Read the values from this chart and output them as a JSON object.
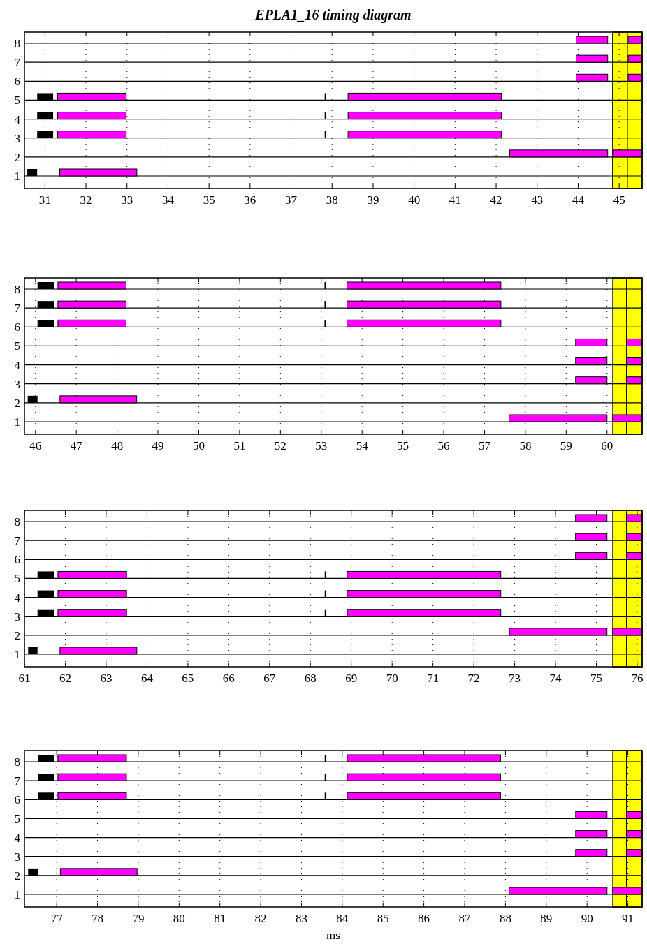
{
  "chart_data": [
    {
      "type": "bar",
      "orientation": "horizontal",
      "title": "EPLA1_16 timing diagram",
      "categories": [
        "8",
        "7",
        "6",
        "5",
        "4",
        "3",
        "2",
        "1"
      ],
      "xlim": [
        30.5,
        45.56
      ],
      "xticks": [
        31,
        32,
        33,
        34,
        35,
        36,
        37,
        38,
        39,
        40,
        41,
        42,
        43,
        44,
        45
      ],
      "grid": true,
      "bands": [
        {
          "axis": "x",
          "from": 44.84,
          "to": 45.2,
          "color": "#ffff00"
        },
        {
          "axis": "x",
          "from": 45.2,
          "to": 45.56,
          "color": "#ffff00"
        }
      ],
      "series": [
        {
          "color": "#000000",
          "base": [
            null,
            null,
            null,
            30.81,
            30.81,
            30.81,
            null,
            30.57
          ],
          "values": [
            null,
            null,
            null,
            0.39,
            0.39,
            0.39,
            null,
            0.24
          ]
        },
        {
          "color": "#ff00ff",
          "base": [
            null,
            null,
            null,
            31.31,
            31.31,
            31.31,
            null,
            31.36
          ],
          "values": [
            null,
            null,
            null,
            1.67,
            1.67,
            1.67,
            null,
            1.88
          ]
        },
        {
          "color": "#000000",
          "base": [
            null,
            null,
            null,
            37.82,
            37.82,
            37.82,
            null,
            null
          ],
          "values": [
            null,
            null,
            null,
            0.04,
            0.04,
            0.04,
            null,
            null
          ]
        },
        {
          "color": "#ff00ff",
          "base": [
            43.95,
            43.95,
            43.95,
            38.39,
            38.39,
            38.39,
            42.33,
            null
          ],
          "values": [
            0.77,
            0.77,
            0.77,
            3.74,
            3.74,
            3.74,
            2.39,
            null
          ]
        },
        {
          "color": "#ff00ff",
          "base": [
            45.22,
            45.22,
            45.22,
            null,
            null,
            null,
            44.86,
            null
          ],
          "values": [
            0.34,
            0.34,
            0.34,
            null,
            null,
            null,
            0.7,
            null
          ]
        }
      ]
    },
    {
      "type": "bar",
      "orientation": "horizontal",
      "categories": [
        "8",
        "7",
        "6",
        "5",
        "4",
        "3",
        "2",
        "1"
      ],
      "xlim": [
        45.73,
        60.86
      ],
      "xticks": [
        46,
        47,
        48,
        49,
        50,
        51,
        52,
        53,
        54,
        55,
        56,
        57,
        58,
        59,
        60
      ],
      "grid": true,
      "bands": [
        {
          "axis": "x",
          "from": 60.14,
          "to": 60.48,
          "color": "#ffff00"
        },
        {
          "axis": "x",
          "from": 60.48,
          "to": 60.86,
          "color": "#ffff00"
        }
      ],
      "series": [
        {
          "color": "#000000",
          "base": [
            46.05,
            46.05,
            46.05,
            null,
            null,
            null,
            45.81,
            null
          ],
          "values": [
            0.4,
            0.4,
            0.4,
            null,
            null,
            null,
            0.24,
            null
          ]
        },
        {
          "color": "#ff00ff",
          "base": [
            46.55,
            46.55,
            46.55,
            null,
            null,
            null,
            46.6,
            null
          ],
          "values": [
            1.67,
            1.67,
            1.67,
            null,
            null,
            null,
            1.88,
            null
          ]
        },
        {
          "color": "#000000",
          "base": [
            53.08,
            53.08,
            53.08,
            null,
            null,
            null,
            null,
            null
          ],
          "values": [
            0.04,
            0.04,
            0.04,
            null,
            null,
            null,
            null,
            null
          ]
        },
        {
          "color": "#ff00ff",
          "base": [
            53.63,
            53.63,
            53.63,
            59.23,
            59.23,
            59.23,
            null,
            57.6
          ],
          "values": [
            3.77,
            3.77,
            3.77,
            0.77,
            0.77,
            0.77,
            null,
            2.4
          ]
        },
        {
          "color": "#ff00ff",
          "base": [
            null,
            null,
            null,
            60.48,
            60.48,
            60.48,
            null,
            60.14
          ],
          "values": [
            null,
            null,
            null,
            0.38,
            0.38,
            0.38,
            null,
            0.72
          ]
        }
      ]
    },
    {
      "type": "bar",
      "orientation": "horizontal",
      "categories": [
        "8",
        "7",
        "6",
        "5",
        "4",
        "3",
        "2",
        "1"
      ],
      "xlim": [
        61,
        76.12
      ],
      "xticks": [
        61,
        62,
        63,
        64,
        65,
        66,
        67,
        68,
        69,
        70,
        71,
        72,
        73,
        74,
        75,
        76
      ],
      "grid": true,
      "bands": [
        {
          "axis": "x",
          "from": 75.4,
          "to": 75.74,
          "color": "#ffff00"
        },
        {
          "axis": "x",
          "from": 75.74,
          "to": 76.12,
          "color": "#ffff00"
        }
      ],
      "series": [
        {
          "color": "#000000",
          "base": [
            null,
            null,
            null,
            61.32,
            61.32,
            61.32,
            null,
            61.09
          ],
          "values": [
            null,
            null,
            null,
            0.4,
            0.4,
            0.4,
            null,
            0.23
          ]
        },
        {
          "color": "#ff00ff",
          "base": [
            null,
            null,
            null,
            61.82,
            61.82,
            61.82,
            null,
            61.87
          ],
          "values": [
            null,
            null,
            null,
            1.68,
            1.68,
            1.68,
            null,
            1.88
          ]
        },
        {
          "color": "#000000",
          "base": [
            null,
            null,
            null,
            68.35,
            68.35,
            68.35,
            null,
            null
          ],
          "values": [
            null,
            null,
            null,
            0.04,
            0.04,
            0.04,
            null,
            null
          ]
        },
        {
          "color": "#ff00ff",
          "base": [
            74.49,
            74.49,
            74.49,
            68.9,
            68.9,
            68.9,
            72.87,
            null
          ],
          "values": [
            0.77,
            0.77,
            0.77,
            3.76,
            3.76,
            3.76,
            2.39,
            null
          ]
        },
        {
          "color": "#ff00ff",
          "base": [
            75.74,
            75.74,
            75.74,
            null,
            null,
            null,
            75.4,
            null
          ],
          "values": [
            0.38,
            0.38,
            0.38,
            null,
            null,
            null,
            0.72,
            null
          ]
        }
      ]
    },
    {
      "type": "bar",
      "orientation": "horizontal",
      "xlabel": "ms",
      "categories": [
        "8",
        "7",
        "6",
        "5",
        "4",
        "3",
        "2",
        "1"
      ],
      "xlim": [
        76.21,
        91.35
      ],
      "xticks": [
        77,
        78,
        79,
        80,
        81,
        82,
        83,
        84,
        85,
        86,
        87,
        88,
        89,
        90,
        91
      ],
      "grid": true,
      "bands": [
        {
          "axis": "x",
          "from": 90.63,
          "to": 90.97,
          "color": "#ffff00"
        },
        {
          "axis": "x",
          "from": 90.97,
          "to": 91.35,
          "color": "#ffff00"
        }
      ],
      "series": [
        {
          "color": "#000000",
          "base": [
            76.54,
            76.54,
            76.54,
            null,
            null,
            null,
            76.3,
            null
          ],
          "values": [
            0.39,
            0.39,
            0.39,
            null,
            null,
            null,
            0.24,
            null
          ]
        },
        {
          "color": "#ff00ff",
          "base": [
            77.03,
            77.03,
            77.03,
            null,
            null,
            null,
            77.09,
            null
          ],
          "values": [
            1.68,
            1.68,
            1.68,
            null,
            null,
            null,
            1.88,
            null
          ]
        },
        {
          "color": "#000000",
          "base": [
            83.57,
            83.57,
            83.57,
            null,
            null,
            null,
            null,
            null
          ],
          "values": [
            0.04,
            0.04,
            0.04,
            null,
            null,
            null,
            null,
            null
          ]
        },
        {
          "color": "#ff00ff",
          "base": [
            84.12,
            84.12,
            84.12,
            89.72,
            89.72,
            89.72,
            null,
            88.09
          ],
          "values": [
            3.76,
            3.76,
            3.76,
            0.77,
            0.77,
            0.77,
            null,
            2.4
          ]
        },
        {
          "color": "#ff00ff",
          "base": [
            null,
            null,
            null,
            90.97,
            90.97,
            90.97,
            null,
            90.63
          ],
          "values": [
            null,
            null,
            null,
            0.38,
            0.38,
            0.38,
            null,
            0.72
          ]
        }
      ]
    }
  ]
}
